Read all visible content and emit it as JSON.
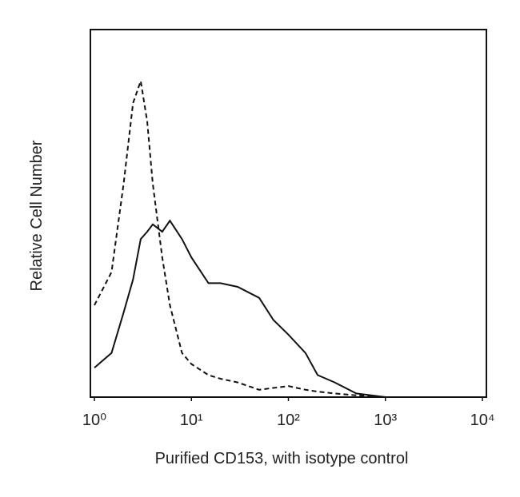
{
  "chart_data": {
    "type": "line",
    "x_label": "Purified CD153, with isotype control",
    "y_label": "Relative Cell Number",
    "xscale": "log",
    "xlim": [
      1,
      10000
    ],
    "ylim": [
      0,
      100
    ],
    "xticks": [
      {
        "value": 1,
        "label": "10⁰"
      },
      {
        "value": 10,
        "label": "10¹"
      },
      {
        "value": 100,
        "label": "10²"
      },
      {
        "value": 1000,
        "label": "10³"
      },
      {
        "value": 10000,
        "label": "10⁴"
      }
    ],
    "x": [
      1,
      1.5,
      2,
      2.5,
      3,
      3.5,
      4,
      5,
      6,
      8,
      10,
      15,
      20,
      30,
      50,
      70,
      100,
      150,
      200,
      300,
      500,
      1000
    ],
    "series": [
      {
        "color": "#111111",
        "dash": false,
        "values": [
          8,
          12,
          23,
          32,
          43,
          45,
          47,
          45,
          48,
          43,
          38,
          31,
          31,
          30,
          27,
          21,
          17,
          12,
          6,
          4,
          1,
          0
        ]
      },
      {
        "color": "#111111",
        "dash": true,
        "values": [
          25,
          34,
          58,
          80,
          86,
          75,
          58,
          38,
          25,
          12,
          9,
          6,
          5,
          4,
          2,
          2.5,
          3,
          2,
          1.5,
          1,
          0.5,
          0
        ]
      }
    ]
  }
}
